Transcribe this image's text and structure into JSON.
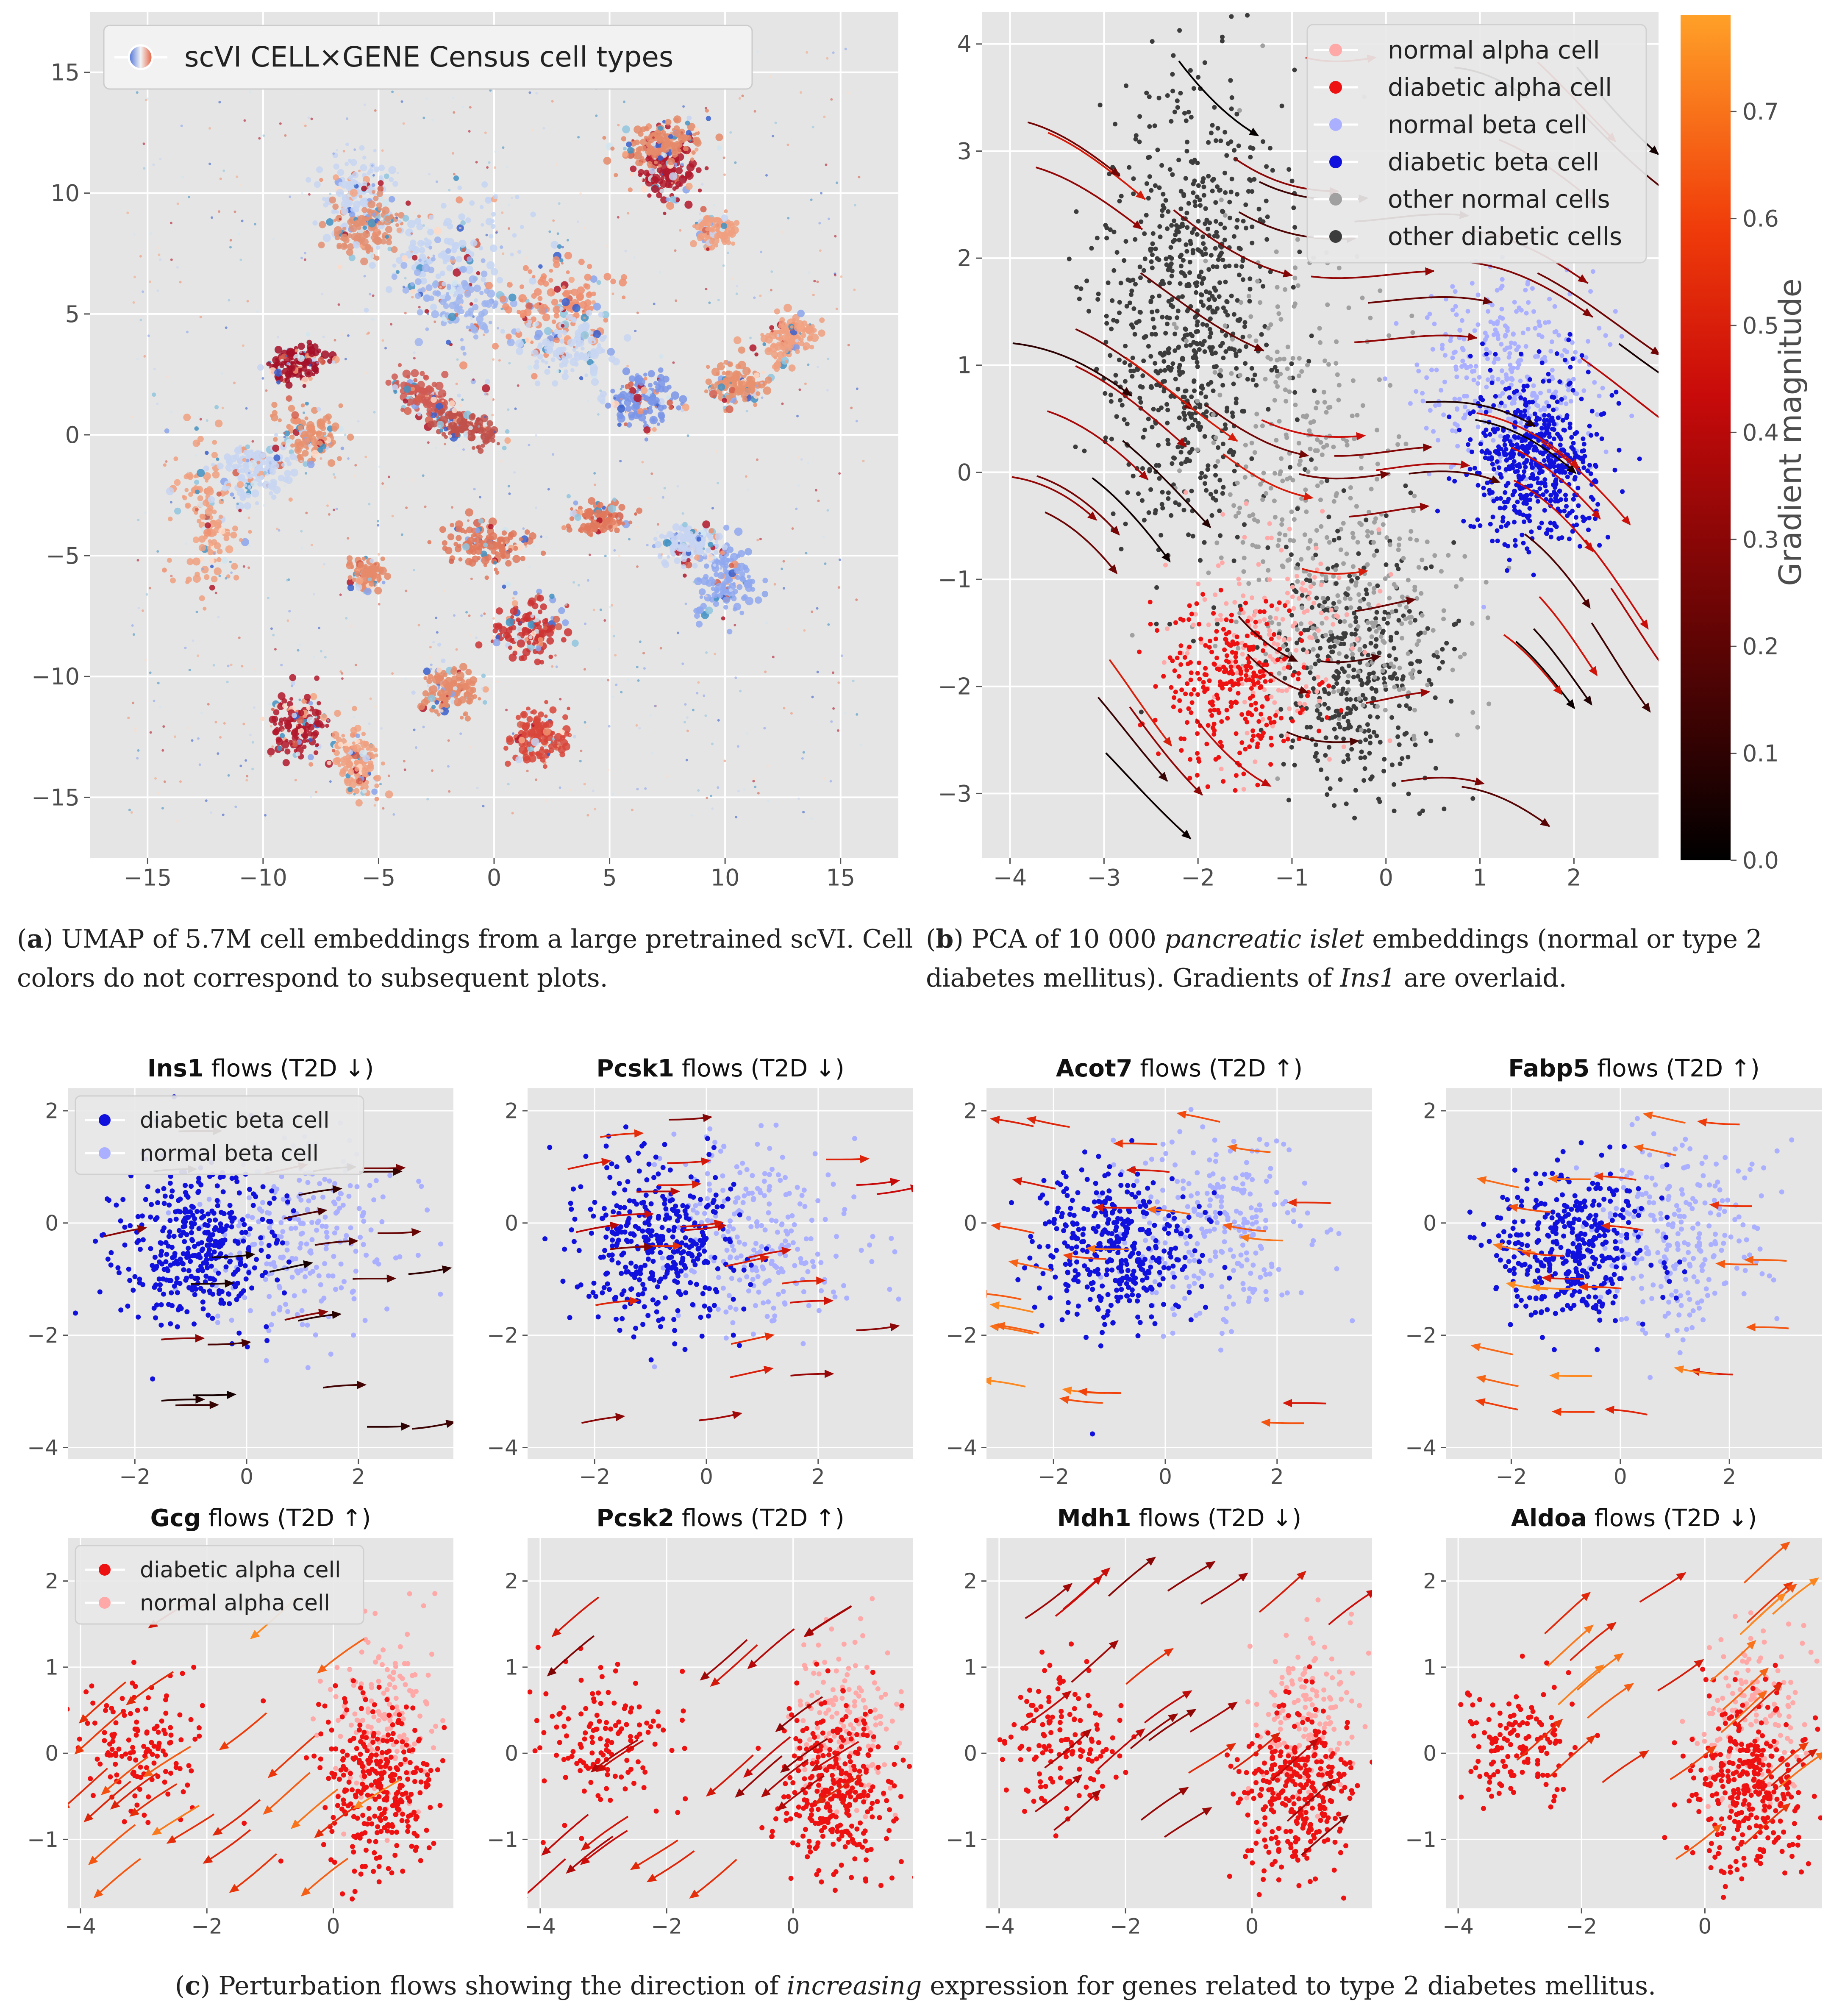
{
  "figure": {
    "captions": {
      "a": {
        "label": "a",
        "pre": "UMAP of 5.7M cell embeddings from a large pretrained scVI. Cell colors do not correspond to subsequent plots."
      },
      "b": {
        "label": "b",
        "pre": "PCA of 10 000 ",
        "italic": "pancreatic islet",
        "mid": " embeddings (normal or type 2 diabetes mellitus). Gradients of ",
        "italic2": "Ins1",
        "post": " are overlaid."
      },
      "c": {
        "label": "c",
        "pre": "Perturbation flows showing the direction of ",
        "italic": "increasing",
        "post": " expression for genes related to type 2 diabetes mellitus."
      }
    }
  },
  "colors": {
    "panel_bg": "#e5e5e5",
    "grid": "#ffffff",
    "normal_alpha": "#ffa8a8",
    "diabetic_alpha": "#ee1111",
    "normal_beta": "#aab0ff",
    "diabetic_beta": "#1111dd",
    "other_normal": "#a0a0a0",
    "other_diabetic": "#3c3c3c"
  },
  "chart_data": [
    {
      "id": "a",
      "type": "scatter",
      "title": "",
      "legend": [
        "scVI CELL×GENE Census cell types"
      ],
      "xlim": [
        -17.5,
        17.5
      ],
      "ylim": [
        -17.5,
        17.5
      ],
      "xticks": [
        -15,
        -10,
        -5,
        0,
        5,
        10,
        15
      ],
      "yticks": [
        -15,
        -10,
        -5,
        0,
        5,
        10,
        15
      ],
      "xlabel": "",
      "ylabel": "",
      "clusters": [
        {
          "x": -2,
          "y": 7.5,
          "color": "#d0dcf0",
          "label": ""
        },
        {
          "x": 3,
          "y": 5,
          "color": "#c8d6f2",
          "label": ""
        },
        {
          "x": -4.5,
          "y": 6.5,
          "color": "#e08a6e",
          "label": ""
        },
        {
          "x": 8,
          "y": 10.5,
          "color": "#b2182b",
          "label": ""
        },
        {
          "x": 10,
          "y": -6,
          "color": "#8fa8ee",
          "label": ""
        },
        {
          "x": -8.5,
          "y": 3,
          "color": "#a50f28",
          "label": ""
        },
        {
          "x": -2,
          "y": 0.5,
          "color": "#c0504a",
          "label": ""
        },
        {
          "x": -8,
          "y": -12,
          "color": "#b2182b",
          "label": ""
        },
        {
          "x": -12,
          "y": -4,
          "color": "#ee8866",
          "label": ""
        },
        {
          "x": 2,
          "y": -12,
          "color": "#cc3333",
          "label": ""
        }
      ]
    },
    {
      "id": "b",
      "type": "scatter",
      "title": "",
      "xlim": [
        -4.3,
        2.9
      ],
      "ylim": [
        -3.6,
        4.3
      ],
      "xticks": [
        -4,
        -3,
        -2,
        -1,
        0,
        1,
        2
      ],
      "yticks": [
        -3,
        -2,
        -1,
        0,
        1,
        2,
        3,
        4
      ],
      "legend": [
        "normal alpha cell",
        "diabetic alpha cell",
        "normal beta cell",
        "diabetic beta cell",
        "other normal cells",
        "other diabetic cells"
      ],
      "colorbar": {
        "label": "Gradient magnitude",
        "min": 0.0,
        "max": 0.79,
        "ticks": [
          0.0,
          0.1,
          0.2,
          0.3,
          0.4,
          0.5,
          0.6,
          0.7
        ]
      },
      "groups": [
        {
          "name": "other diabetic cells",
          "cx": -2.1,
          "cy": 1.5,
          "sx": 0.45,
          "sy": 1.1,
          "n": 1400
        },
        {
          "name": "other normal cells",
          "cx": -1.0,
          "cy": 0.2,
          "sx": 0.55,
          "sy": 1.0,
          "n": 500
        },
        {
          "name": "other diabetic cells",
          "cx": -0.3,
          "cy": -1.8,
          "sx": 0.45,
          "sy": 0.6,
          "n": 700
        },
        {
          "name": "other normal cells",
          "cx": -0.2,
          "cy": -1.3,
          "sx": 0.5,
          "sy": 0.55,
          "n": 350
        },
        {
          "name": "normal alpha cell",
          "cx": -1.2,
          "cy": -1.6,
          "sx": 0.45,
          "sy": 0.5,
          "n": 300
        },
        {
          "name": "diabetic alpha cell",
          "cx": -1.6,
          "cy": -2.0,
          "sx": 0.4,
          "sy": 0.4,
          "n": 550
        },
        {
          "name": "normal beta cell",
          "cx": 1.3,
          "cy": 0.9,
          "sx": 0.45,
          "sy": 0.45,
          "n": 650
        },
        {
          "name": "diabetic beta cell",
          "cx": 1.6,
          "cy": 0.1,
          "sx": 0.35,
          "sy": 0.4,
          "n": 1000
        }
      ]
    },
    {
      "id": "c1",
      "type": "scatter",
      "title_gene": "Ins1",
      "title_rest": " flows (T2D ↓)",
      "xlim": [
        -3.2,
        3.7
      ],
      "ylim": [
        -4.2,
        2.4
      ],
      "xticks": [
        -2,
        0,
        2
      ],
      "yticks": [
        -4,
        -2,
        0,
        2
      ],
      "legend": [
        "diabetic beta cell",
        "normal beta cell"
      ],
      "cell": "beta",
      "flow_dir": 1,
      "flow_mag": "low"
    },
    {
      "id": "c2",
      "type": "scatter",
      "title_gene": "Pcsk1",
      "title_rest": " flows (T2D ↓)",
      "xlim": [
        -3.2,
        3.7
      ],
      "ylim": [
        -4.2,
        2.4
      ],
      "xticks": [
        -2,
        0,
        2
      ],
      "yticks": [
        -4,
        -2,
        0,
        2
      ],
      "cell": "beta",
      "flow_dir": 1,
      "flow_mag": "mid"
    },
    {
      "id": "c3",
      "type": "scatter",
      "title_gene": "Acot7",
      "title_rest": " flows (T2D ↑)",
      "xlim": [
        -3.2,
        3.7
      ],
      "ylim": [
        -4.2,
        2.4
      ],
      "xticks": [
        -2,
        0,
        2
      ],
      "yticks": [
        -4,
        -2,
        0,
        2
      ],
      "cell": "beta",
      "flow_dir": -1,
      "flow_mag": "high"
    },
    {
      "id": "c4",
      "type": "scatter",
      "title_gene": "Fabp5",
      "title_rest": " flows (T2D ↑)",
      "xlim": [
        -3.2,
        3.7
      ],
      "ylim": [
        -4.2,
        2.4
      ],
      "xticks": [
        -2,
        0,
        2
      ],
      "yticks": [
        -4,
        -2,
        0,
        2
      ],
      "cell": "beta",
      "flow_dir": -1,
      "flow_mag": "high"
    },
    {
      "id": "c5",
      "type": "scatter",
      "title_gene": "Gcg",
      "title_rest": " flows (T2D ↑)",
      "xlim": [
        -4.2,
        1.9
      ],
      "ylim": [
        -1.8,
        2.5
      ],
      "xticks": [
        -4,
        -2,
        0
      ],
      "yticks": [
        -1,
        0,
        1,
        2
      ],
      "legend": [
        "diabetic alpha cell",
        "normal alpha cell"
      ],
      "cell": "alpha",
      "flow_dir": -1,
      "flow_mag": "high"
    },
    {
      "id": "c6",
      "type": "scatter",
      "title_gene": "Pcsk2",
      "title_rest": " flows (T2D ↑)",
      "xlim": [
        -4.2,
        1.9
      ],
      "ylim": [
        -1.8,
        2.5
      ],
      "xticks": [
        -4,
        -2,
        0
      ],
      "yticks": [
        -1,
        0,
        1,
        2
      ],
      "cell": "alpha",
      "flow_dir": -1,
      "flow_mag": "mid"
    },
    {
      "id": "c7",
      "type": "scatter",
      "title_gene": "Mdh1",
      "title_rest": " flows (T2D ↓)",
      "xlim": [
        -4.2,
        1.9
      ],
      "ylim": [
        -1.8,
        2.5
      ],
      "xticks": [
        -4,
        -2,
        0
      ],
      "yticks": [
        -1,
        0,
        1,
        2
      ],
      "cell": "alpha",
      "flow_dir": 1,
      "flow_mag": "mid"
    },
    {
      "id": "c8",
      "type": "scatter",
      "title_gene": "Aldoa",
      "title_rest": " flows (T2D ↓)",
      "xlim": [
        -4.2,
        1.9
      ],
      "ylim": [
        -1.8,
        2.5
      ],
      "xticks": [
        -4,
        -2,
        0
      ],
      "yticks": [
        -1,
        0,
        1,
        2
      ],
      "cell": "alpha",
      "flow_dir": 1,
      "flow_mag": "high"
    }
  ]
}
